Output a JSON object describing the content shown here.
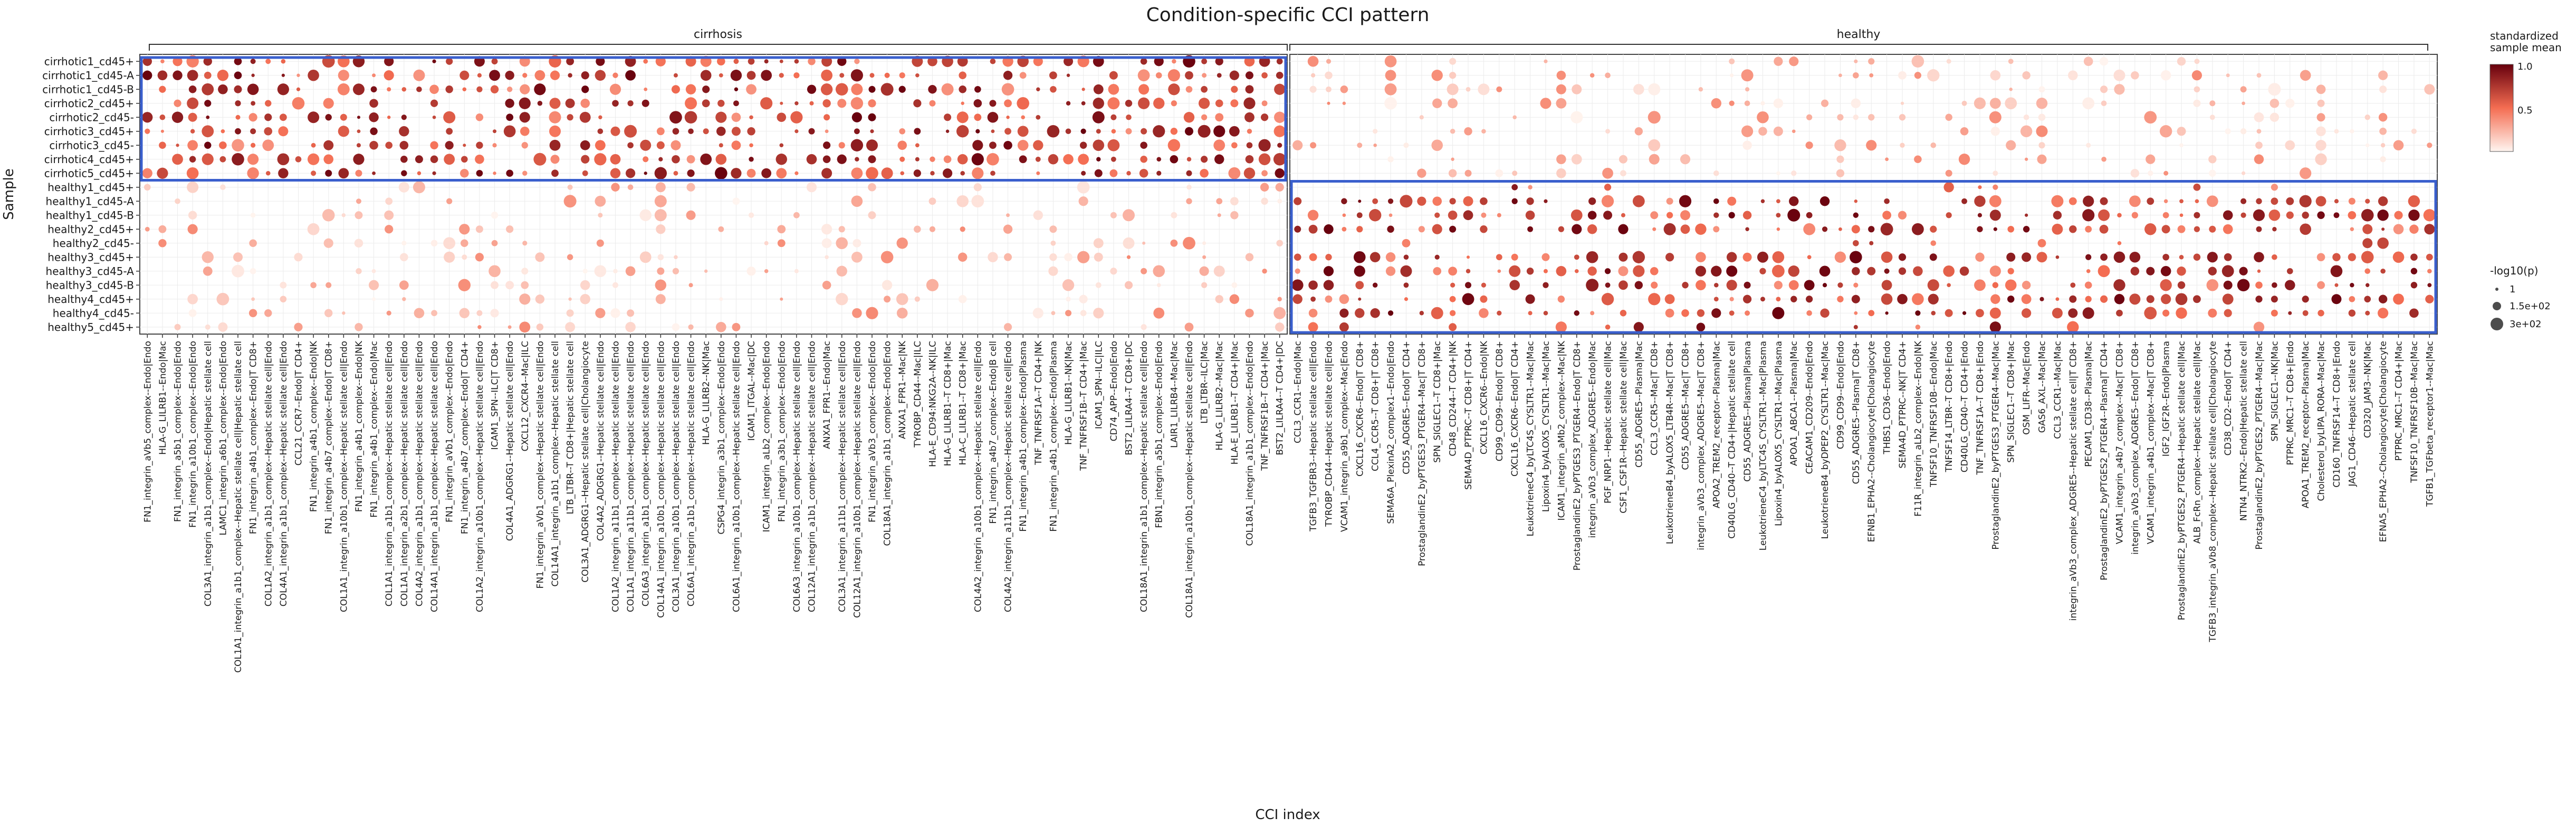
{
  "chart_data": {
    "type": "heatmap",
    "title": "Condition-specific CCI pattern",
    "xlabel": "CCI index",
    "ylabel": "Sample",
    "facets": [
      "cirrhosis",
      "healthy"
    ],
    "samples": [
      "cirrhotic1_cd45+",
      "cirrhotic1_cd45-A",
      "cirrhotic1_cd45-B",
      "cirrhotic2_cd45+",
      "cirrhotic2_cd45-",
      "cirrhotic3_cd45+",
      "cirrhotic3_cd45-",
      "cirrhotic4_cd45+",
      "cirrhotic5_cd45+",
      "healthy1_cd45+",
      "healthy1_cd45-A",
      "healthy1_cd45-B",
      "healthy2_cd45+",
      "healthy2_cd45-",
      "healthy3_cd45+",
      "healthy3_cd45-A",
      "healthy3_cd45-B",
      "healthy4_cd45+",
      "healthy4_cd45-",
      "healthy5_cd45+"
    ],
    "cirrhosis_sample_count": 9,
    "legend_color": {
      "title": "standardized\nsample mean",
      "ticks": [
        "1.0",
        "0.5"
      ],
      "low": "#fff5f0",
      "mid": "#f46d52",
      "high": "#67000d"
    },
    "legend_size": {
      "title": "-log10(p)",
      "labels": [
        "1",
        "1.5e+02",
        "3e+02"
      ]
    },
    "box_color": "#3a5fcd",
    "cci_cirrhosis": [
      "FN1_integrin_aVb5_complex--Endo|Endo",
      "HLA-G_LILRB1--Endo|Mac",
      "FN1_integrin_a5b1_complex--Endo|Endo",
      "FN1_integrin_a10b1_complex--Endo|Endo",
      "COL3A1_integrin_a1b1_complex--Endo|Hepatic stellate cell",
      "LAMC1_integrin_a6b1_complex--Endo|Endo",
      "COL1A1_integrin_a1b1_complex--Hepatic stellate cell|Hepatic stellate cell",
      "FN1_integrin_a4b1_complex--Endo|T CD8+",
      "COL1A2_integrin_a1b1_complex--Hepatic stellate cell|Endo",
      "COL4A1_integrin_a1b1_complex--Hepatic stellate cell|Endo",
      "CCL21_CCR7--Endo|T CD4+",
      "FN1_integrin_a4b1_complex--Endo|NK",
      "FN1_integrin_a4b7_complex--Endo|T CD8+",
      "COL1A1_integrin_a10b1_complex--Hepatic stellate cell|Endo",
      "FN1_integrin_a4b1_complex--Endo|NK",
      "FN1_integrin_a4b1_complex--Endo|Mac",
      "COL1A1_integrin_a1b1_complex--Hepatic stellate cell|Endo",
      "COL1A1_integrin_a2b1_complex--Hepatic stellate cell|Endo",
      "COL4A2_integrin_a1b1_complex--Hepatic stellate cell|Endo",
      "COL14A1_integrin_a1b1_complex--Hepatic stellate cell|Endo",
      "FN1_integrin_aVb1_complex--Endo|Endo",
      "FN1_integrin_a4b7_complex--Endo|T CD4+",
      "COL1A2_integrin_a10b1_complex--Hepatic stellate cell|Endo",
      "ICAM1_SPN--ILC|T CD8+",
      "COL4A1_ADGRG1--Hepatic stellate cell|Endo",
      "CXCL12_CXCR4--Mac|ILC",
      "FN1_integrin_aVb1_complex--Hepatic stellate cell|Endo",
      "COL14A1_integrin_a1b1_complex--Hepatic stellate cell",
      "LTB_LTBR--T CD8+|Hepatic stellate cell",
      "COL3A1_ADGRG1--Hepatic stellate cell|Cholangiocyte",
      "COL4A2_ADGRG1--Hepatic stellate cell|Endo",
      "COL1A2_integrin_a11b1_complex--Hepatic stellate cell|Endo",
      "COL1A1_integrin_a11b1_complex--Hepatic stellate cell|Endo",
      "COL6A3_integrin_a1b1_complex--Hepatic stellate cell|Endo",
      "COL14A1_integrin_a10b1_complex--Hepatic stellate cell|Endo",
      "COL3A1_integrin_a10b1_complex--Hepatic stellate cell|Endo",
      "COL6A1_integrin_a1b1_complex--Hepatic stellate cell|Endo",
      "HLA-G_LILRB2--NK|Mac",
      "CSPG4_integrin_a3b1_complex--Endo|Endo",
      "COL6A1_integrin_a10b1_complex--Hepatic stellate cell|Endo",
      "ICAM1_ITGAL--Mac|DC",
      "ICAM1_integrin_aLb2_complex--Endo|Endo",
      "FN1_integrin_a3b1_complex--Endo|Endo",
      "COL6A3_integrin_a10b1_complex--Hepatic stellate cell|Endo",
      "COL12A1_integrin_a1b1_complex--Hepatic stellate cell|Endo",
      "ANXA1_FPR1--Endo|Mac",
      "COL3A1_integrin_a11b1_complex--Hepatic stellate cell|Endo",
      "COL12A1_integrin_a10b1_complex--Hepatic stellate cell|Endo",
      "FN1_integrin_aVb3_complex--Endo|Endo",
      "COL18A1_integrin_a1b1_complex--Endo|Endo",
      "ANXA1_FPR1--Mac|NK",
      "TYROBP_CD44--Mac|ILC",
      "HLA-E_CD94:NKG2A--NK|ILC",
      "HLA-G_LILRB1--T CD8+|Mac",
      "HLA-C_LILRB1--T CD8+|Mac",
      "COL4A2_integrin_a10b1_complex--Hepatic stellate cell|Endo",
      "FN1_integrin_a4b7_complex--Endo|B cell",
      "COL4A2_integrin_a11b1_complex--Hepatic stellate cell|Endo",
      "FN1_integrin_a4b1_complex--Endo|Plasma",
      "TNF_TNFRSF1A--T CD4+|NK",
      "FN1_integrin_a4b1_complex--Endo|Plasma",
      "HLA-G_LILRB1--NK|Mac",
      "TNF_TNFRSF1B--T CD4+|Mac",
      "ICAM1_SPN--ILC|ILC",
      "CD74_APP--Endo|Endo",
      "BST2_LILRA4--T CD8+|DC",
      "COL18A1_integrin_a1b1_complex--Hepatic stellate cell|Endo",
      "FBN1_integrin_a5b1_complex--Endo|Endo",
      "LAIR1_LILRB4--Mac|Mac",
      "COL18A1_integrin_a10b1_complex--Hepatic stellate cell|Endo",
      "LTB_LTBR--ILC|Mac",
      "HLA-G_LILRB2--Mac|Mac",
      "HLA-E_LILRB1--T CD4+|Mac",
      "COL18A1_integrin_a1b1_complex--Endo|Endo",
      "TNF_TNFRSF1B--T CD4+|Mac",
      "BST2_LILRA4--T CD4+|DC"
    ],
    "cci_healthy": [
      "CCL3_CCR1--Endo|Mac",
      "TGFB3_TGFBR3--Hepatic stellate cell|Endo",
      "TYROBP_CD44--Hepatic stellate cell|Endo",
      "VCAM1_integrin_a9b1_complex--Mac|Endo",
      "CXCL16_CXCR6--Endo|T CD8+",
      "CCL4_CCR5--T CD8+|T CD8+",
      "SEMA6A_PlexinA2_complex1--Endo|Endo",
      "CD55_ADGRE5--Endo|T CD4+",
      "ProstaglandinE2_byPTGES3_PTGER4--Mac|T CD8+",
      "SPN_SIGLEC1--T CD8+|Mac",
      "CD48_CD244--T CD4+|NK",
      "SEMA4D_PTPRC--T CD8+|T CD4+",
      "CXCL16_CXCR6--Endo|NK",
      "CD99_CD99--Endo|T CD8+",
      "CXCL16_CXCR6--Endo|T CD4+",
      "LeukotrieneC4_byLTC4S_CYSLTR1--Mac|Mac",
      "Lipoxin4_byALOX5_CYSLTR1--Mac|Mac",
      "ICAM1_integrin_aMb2_complex--Mac|NK",
      "ProstaglandinE2_byPTGES3_PTGER4--Endo|T CD8+",
      "integrin_aVb3_complex_ADGRE5--Endo|Mac",
      "PGF_NRP1--Hepatic stellate cell|Mac",
      "CSF1_CSF1R--Hepatic stellate cell|Mac",
      "CD55_ADGRE5--Plasma|Mac",
      "CCL3_CCR5--Mac|T CD8+",
      "LeukotrieneB4_byALOX5_LTB4R--Mac|T CD8+",
      "CD55_ADGRE5--Mac|T CD8+",
      "integrin_aVb3_complex_ADGRE5--Mac|T CD8+",
      "APOA2_TREM2_receptor--Plasma|Mac",
      "CD40LG_CD40--T CD4+|Hepatic stellate cell",
      "CD55_ADGRE5--Plasma|Plasma",
      "LeukotrieneC4_byLTC4S_CYSLTR1--Mac|Plasma",
      "Lipoxin4_byALOX5_CYSLTR1--Mac|Plasma",
      "APOA1_ABCA1--Plasma|Mac",
      "CEACAM1_CD209--Endo|Endo",
      "LeukotrieneB4_byDPEP2_CYSLTR1--Mac|Mac",
      "CD99_CD99--Endo|Endo",
      "CD55_ADGRE5--Plasma|T CD8+",
      "EFNB1_EPHA2--Cholangiocyte|Cholangiocyte",
      "THBS1_CD36--Endo|Endo",
      "SEMA4D_PTPRC--NK|T CD4+",
      "F11R_integrin_aLb2_complex--Endo|NK",
      "TNFSF10_TNFRSF10B--Endo|Mac",
      "TNFSF14_LTBR--T CD8+|Endo",
      "CD40LG_CD40--T CD4+|Endo",
      "TNF_TNFRSF1A--T CD8+|Endo",
      "ProstaglandinE2_byPTGES3_PTGER4--Mac|Mac",
      "SPN_SIGLEC1--T CD8+|Mac",
      "OSM_LIFR--Mac|Endo",
      "GAS6_AXL--Mac|Mac",
      "CCL3_CCR1--Mac|Mac",
      "integrin_aVb3_complex_ADGRE5--Hepatic stellate cell|T CD8+",
      "PECAM1_CD38--Plasma|Mac",
      "ProstaglandinE2_byPTGES2_PTGER4--Plasma|T CD4+",
      "VCAM1_integrin_a4b7_complex--Mac|T CD8+",
      "integrin_aVb3_complex_ADGRE5--Endo|T CD8+",
      "VCAM1_integrin_a4b1_complex--Mac|T CD8+",
      "IGF2_IGF2R--Endo|Plasma",
      "ProstaglandinE2_byPTGES2_PTGER4--Hepatic stellate cell|Mac",
      "ALB_FcRn_complex--Hepatic stellate cell|Mac",
      "TGFB3_integrin_aVb8_complex--Hepatic stellate cell|Cholangiocyte",
      "CD38_CD2--Endo|T CD4+",
      "NTN4_NTRK2--Endo|Hepatic stellate cell",
      "ProstaglandinE2_byPTGES2_PTGER4--Mac|Mac",
      "SPN_SIGLEC1--NK|Mac",
      "PTPRC_MRC1--T CD8+|Endo",
      "APOA1_TREM2_receptor--Plasma|Mac",
      "Cholesterol_byLIPA_RORA--Mac|Mac",
      "CD160_TNFRSF14--T CD8+|Endo",
      "JAG1_CD46--Hepatic stellate cell",
      "CD320_JAM3--NK|Mac",
      "EFNA5_EPHA2--Cholangiocyte|Cholangiocyte",
      "PTPRC_MRC1--T CD4+|Mac",
      "TNFSF10_TNFRSF10B--Mac|Mac",
      "TGFB1_TGFbeta_receptor1--Mac|Mac"
    ]
  }
}
